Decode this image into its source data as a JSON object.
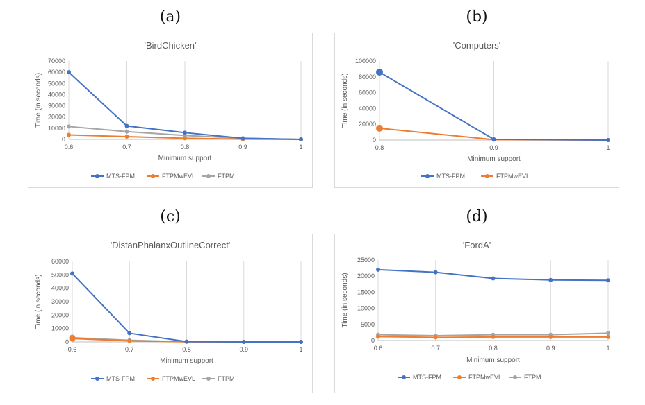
{
  "panel_labels": [
    "(a)",
    "(b)",
    "(c)",
    "(d)"
  ],
  "chart_data": [
    {
      "type": "line",
      "title": "'BirdChicken'",
      "xlabel": "Minimum support",
      "ylabel": "Time (in seconds)",
      "x": [
        0.6,
        0.7,
        0.8,
        0.9,
        1
      ],
      "x_tick_labels": [
        "0.6",
        "0.7",
        "0.8",
        "0.9",
        "1"
      ],
      "ylim": [
        0,
        70000
      ],
      "y_ticks": [
        0,
        10000,
        20000,
        30000,
        40000,
        50000,
        60000,
        70000
      ],
      "grid": "vertical",
      "legend_position": "bottom",
      "series": [
        {
          "name": "MTS-FPM",
          "color": "#4472c4",
          "values": [
            60000,
            12000,
            6000,
            1000,
            0
          ]
        },
        {
          "name": "FTPMwEVL",
          "color": "#ed7d31",
          "values": [
            4000,
            2500,
            1000,
            200,
            0
          ]
        },
        {
          "name": "FTPM",
          "color": "#a5a5a5",
          "values": [
            11500,
            7000,
            3500,
            1000,
            0
          ]
        }
      ]
    },
    {
      "type": "line",
      "title": "'Computers'",
      "xlabel": "Minimum support",
      "ylabel": "Time (in seconds)",
      "x": [
        0.8,
        0.9,
        1
      ],
      "x_tick_labels": [
        "0.8",
        "0.9",
        "1"
      ],
      "ylim": [
        0,
        100000
      ],
      "y_ticks": [
        0,
        20000,
        40000,
        60000,
        80000,
        100000
      ],
      "grid": "vertical",
      "legend_position": "bottom",
      "series": [
        {
          "name": "MTS-FPM",
          "color": "#4472c4",
          "values": [
            86000,
            1000,
            0
          ]
        },
        {
          "name": "FTPMwEVL",
          "color": "#ed7d31",
          "values": [
            15000,
            500,
            0
          ]
        }
      ]
    },
    {
      "type": "line",
      "title": "'DistanPhalanxOutlineCorrect'",
      "xlabel": "Minimum support",
      "ylabel": "Time (in seconds)",
      "x": [
        0.6,
        0.7,
        0.8,
        0.9,
        1
      ],
      "x_tick_labels": [
        "0.6",
        "0.7",
        "0.8",
        "0.9",
        "1"
      ],
      "ylim": [
        0,
        60000
      ],
      "y_ticks": [
        0,
        10000,
        20000,
        30000,
        40000,
        50000,
        60000
      ],
      "grid": "vertical",
      "legend_position": "bottom",
      "series": [
        {
          "name": "MTS-FPM",
          "color": "#4472c4",
          "values": [
            51000,
            6500,
            200,
            0,
            0
          ]
        },
        {
          "name": "FTPMwEVL",
          "color": "#ed7d31",
          "values": [
            2500,
            800,
            100,
            0,
            0
          ]
        },
        {
          "name": "FTPM",
          "color": "#a5a5a5",
          "values": [
            3200,
            1200,
            100,
            0,
            0
          ]
        }
      ]
    },
    {
      "type": "line",
      "title": "'FordA'",
      "xlabel": "Minimum support",
      "ylabel": "Time (in seconds)",
      "x": [
        0.6,
        0.7,
        0.8,
        0.9,
        1
      ],
      "x_tick_labels": [
        "0.6",
        "0.7",
        "0.8",
        "0.9",
        "1"
      ],
      "ylim": [
        0,
        25000
      ],
      "y_ticks": [
        0,
        5000,
        10000,
        15000,
        20000,
        25000
      ],
      "grid": "vertical",
      "legend_position": "bottom",
      "series": [
        {
          "name": "MTS-FPM",
          "color": "#4472c4",
          "values": [
            22000,
            21200,
            19300,
            18800,
            18700
          ]
        },
        {
          "name": "FTPMwEVL",
          "color": "#ed7d31",
          "values": [
            1200,
            1000,
            1100,
            1100,
            1100
          ]
        },
        {
          "name": "FTPM",
          "color": "#a5a5a5",
          "values": [
            1800,
            1500,
            1800,
            1800,
            2300
          ]
        }
      ]
    }
  ]
}
